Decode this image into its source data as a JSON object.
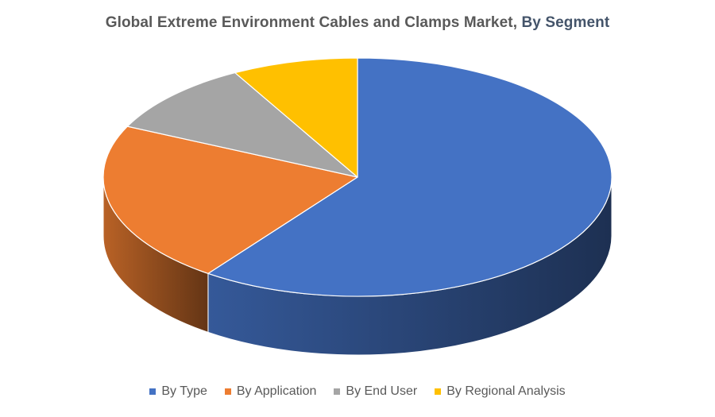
{
  "chart_data": {
    "type": "pie",
    "title": "Global Extreme Environment Cables and Clamps Market,",
    "title_suffix": "By Segment",
    "categories": [
      "By Type",
      "By Application",
      "By End User",
      "By Regional Analysis"
    ],
    "values": [
      60,
      22,
      10,
      8
    ],
    "colors": [
      "#4472c4",
      "#ed7d31",
      "#a5a5a5",
      "#ffc000"
    ],
    "style": "3d",
    "legend_position": "bottom"
  }
}
